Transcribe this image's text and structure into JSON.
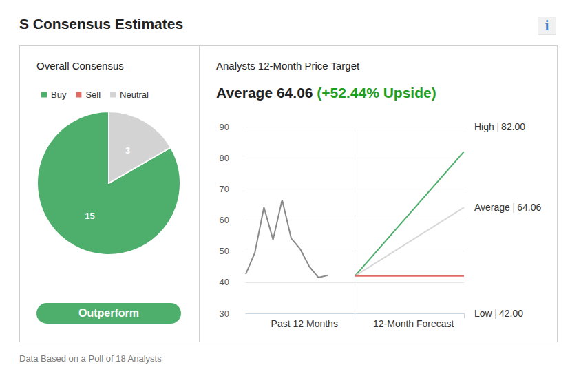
{
  "header": {
    "title": "S Consensus Estimates",
    "info_icon": "i"
  },
  "footer": "Data Based on a Poll of 18 Analysts",
  "chart_data": [
    {
      "type": "pie",
      "title": "Overall Consensus",
      "categories": [
        "Buy",
        "Sell",
        "Neutral"
      ],
      "values": [
        15,
        0,
        3
      ],
      "colors": [
        "#4daf6b",
        "#e06a66",
        "#d3d3d3"
      ],
      "data_labels": true,
      "legend": "top-left",
      "badge": "Outperform"
    },
    {
      "type": "line",
      "title": "Analysts 12-Month Price Target",
      "headline": "Average 64.06",
      "headline_note": "(+52.44% Upside)",
      "x_sections": [
        "Past 12 Months",
        "12-Month Forecast"
      ],
      "label_separator": "|",
      "xlim": [
        0,
        24
      ],
      "xticks": [
        0,
        12,
        24
      ],
      "ylim": [
        30,
        90
      ],
      "yticks": [
        30,
        40,
        50,
        60,
        70,
        80,
        90
      ],
      "grid": true,
      "tick_labels": "y",
      "series": [
        {
          "color": "#8a8a8a",
          "x": [
            0,
            1,
            2,
            3,
            4,
            5,
            6,
            7,
            8,
            9
          ],
          "values": [
            42.6,
            49.5,
            64.1,
            53.7,
            66.5,
            54.1,
            50.6,
            45,
            41.5,
            42.2
          ]
        },
        {
          "name": "High",
          "color": "#4daf6b",
          "x": [
            12,
            24
          ],
          "values": [
            42,
            82
          ],
          "value_labels": [
            null,
            "82.00"
          ]
        },
        {
          "name": "Average",
          "color": "#d8d8d8",
          "x": [
            12,
            24
          ],
          "values": [
            42,
            64.06
          ],
          "value_labels": [
            null,
            "64.06"
          ]
        },
        {
          "name": "Low",
          "color": "#e06a66",
          "x": [
            12,
            24
          ],
          "values": [
            42,
            42
          ],
          "value_labels": [
            null,
            "42.00"
          ]
        }
      ]
    }
  ]
}
